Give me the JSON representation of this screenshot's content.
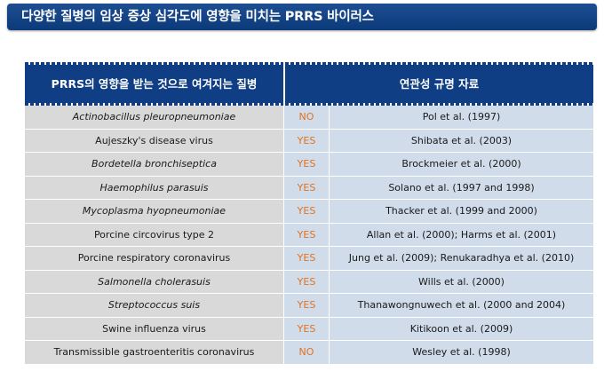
{
  "banner": {
    "title": "다양한 질병의 임상 증상 심각도에 영향을 미치는 PRRS 바이러스"
  },
  "table": {
    "header_left": "PRRS의 영향을 받는 것으로  여겨지는 질병",
    "header_right": "연관성 규명 자료",
    "rows": [
      {
        "disease": "Actinobacillus pleuropneumoniae",
        "italic": true,
        "association": "NO",
        "reference": "Pol et al. (1997)"
      },
      {
        "disease": "Aujeszky's disease virus",
        "italic": false,
        "association": "YES",
        "reference": "Shibata et al. (2003)"
      },
      {
        "disease": "Bordetella bronchiseptica",
        "italic": true,
        "association": "YES",
        "reference": "Brockmeier et al. (2000)"
      },
      {
        "disease": "Haemophilus parasuis",
        "italic": true,
        "association": "YES",
        "reference": "Solano et al. (1997 and 1998)"
      },
      {
        "disease": "Mycoplasma hyopneumoniae",
        "italic": true,
        "association": "YES",
        "reference": "Thacker et al. (1999 and 2000)"
      },
      {
        "disease": "Porcine circovirus type 2",
        "italic": false,
        "association": "YES",
        "reference": "Allan et al. (2000); Harms et al. (2001)"
      },
      {
        "disease": "Porcine respiratory coronavirus",
        "italic": false,
        "association": "YES",
        "reference": "Jung et al. (2009); Renukaradhya et al. (2010)"
      },
      {
        "disease": "Salmonella cholerasuis",
        "italic": true,
        "association": "YES",
        "reference": "Wills et al. (2000)"
      },
      {
        "disease": "Streptococcus suis",
        "italic": true,
        "association": "YES",
        "reference": "Thanawongnuwech et al. (2000 and 2004)"
      },
      {
        "disease": "Swine influenza virus",
        "italic": false,
        "association": "YES",
        "reference": "Kitikoon et al. (2009)"
      },
      {
        "disease": "Transmissible gastroenteritis coronavirus",
        "italic": false,
        "association": "NO",
        "reference": "Wesley et al. (1998)"
      }
    ]
  },
  "colors": {
    "header_bg": "#0f3e84",
    "disease_bg": "#d9d9d9",
    "ref_bg": "#d0dcea",
    "yes_no_text": "#e0721f"
  }
}
